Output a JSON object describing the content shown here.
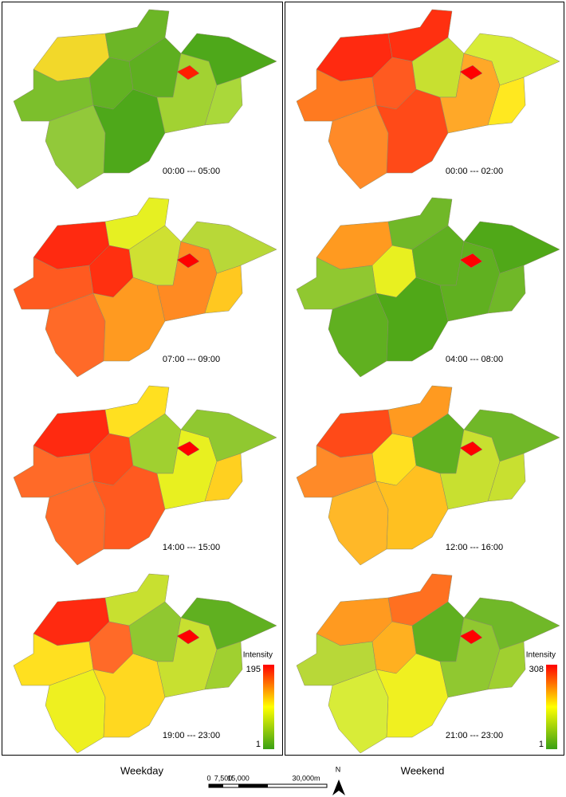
{
  "panels": [
    {
      "label": "Weekday",
      "legend": {
        "title": "Intensity",
        "max": 195,
        "min": 1
      },
      "maps": [
        {
          "time": "00:00 --- 05:00",
          "region_colors": [
            "#f2d82a",
            "#7cbf2c",
            "#92c93a",
            "#6cb626",
            "#62b222",
            "#4ea81a",
            "#5eaf20",
            "#a2d232",
            "#4ea81a",
            "#aad83a",
            "#ff1e00"
          ]
        },
        {
          "time": "07:00 --- 09:00",
          "region_colors": [
            "#ff2a10",
            "#ff5a20",
            "#ff6a28",
            "#e6f022",
            "#ff3010",
            "#ff9a20",
            "#cfe032",
            "#ff8a22",
            "#b8d838",
            "#ffc820",
            "#ff0000"
          ]
        },
        {
          "time": "14:00 --- 15:00",
          "region_colors": [
            "#ff2a10",
            "#ff6a28",
            "#ff6a28",
            "#ffe020",
            "#ff4a18",
            "#ff5a20",
            "#a0d030",
            "#e8f020",
            "#90c830",
            "#ffd020",
            "#ff0000"
          ]
        },
        {
          "time": "19:00 --- 23:00",
          "region_colors": [
            "#ff2a10",
            "#ffe020",
            "#eef020",
            "#c8e030",
            "#ff6a28",
            "#ffd820",
            "#90c830",
            "#c8e030",
            "#60b020",
            "#a0d030",
            "#ff0000"
          ]
        }
      ]
    },
    {
      "label": "Weekend",
      "legend": {
        "title": "Intensity",
        "max": 308,
        "min": 1
      },
      "maps": [
        {
          "time": "00:00 --- 02:00",
          "region_colors": [
            "#ff2a10",
            "#ff7a20",
            "#ff8a28",
            "#ff3010",
            "#ff5a20",
            "#ff4a18",
            "#c8e030",
            "#ffa828",
            "#d8ec38",
            "#ffe820",
            "#ff0000"
          ]
        },
        {
          "time": "04:00 --- 08:00",
          "region_colors": [
            "#ff9a20",
            "#90c830",
            "#60b020",
            "#70b828",
            "#e8f020",
            "#50a818",
            "#60b020",
            "#60b020",
            "#50a818",
            "#70b828",
            "#ff0000"
          ]
        },
        {
          "time": "12:00 --- 16:00",
          "region_colors": [
            "#ff4a18",
            "#ff8a28",
            "#ffb828",
            "#ff9a20",
            "#ffe020",
            "#ffc020",
            "#60b020",
            "#c8e030",
            "#70b828",
            "#c8e030",
            "#ff0000"
          ]
        },
        {
          "time": "21:00 --- 23:00",
          "region_colors": [
            "#ff9a20",
            "#b8d838",
            "#d8ec38",
            "#ff7020",
            "#ffb020",
            "#f0f020",
            "#60b020",
            "#90c830",
            "#70b828",
            "#a0d030",
            "#ff0000"
          ]
        }
      ]
    }
  ],
  "scale_bar": {
    "labels": [
      "0",
      "7,500",
      "15,000",
      "30,000m"
    ]
  },
  "north": "N"
}
